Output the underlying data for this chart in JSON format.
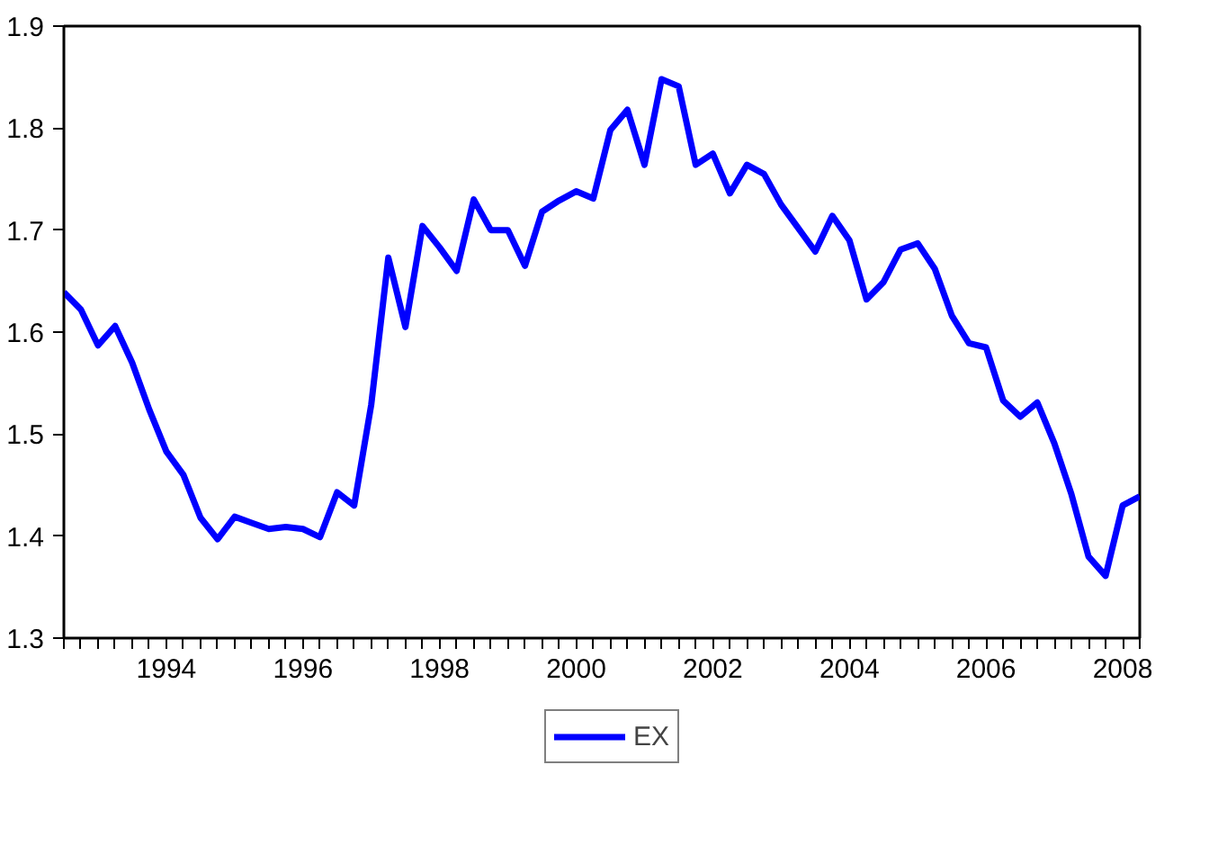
{
  "chart_data": {
    "type": "line",
    "x": [
      1993,
      1993.25,
      1993.5,
      1993.75,
      1994,
      1994.25,
      1994.5,
      1994.75,
      1995,
      1995.25,
      1995.5,
      1995.75,
      1996,
      1996.25,
      1996.5,
      1996.75,
      1997,
      1997.25,
      1997.5,
      1997.75,
      1998,
      1998.25,
      1998.5,
      1998.75,
      1999,
      1999.25,
      1999.5,
      1999.75,
      2000,
      2000.25,
      2000.5,
      2000.75,
      2001,
      2001.25,
      2001.5,
      2001.75,
      2002,
      2002.25,
      2002.5,
      2002.75,
      2003,
      2003.25,
      2003.5,
      2003.75,
      2004,
      2004.25,
      2004.5,
      2004.75,
      2005,
      2005.25,
      2005.5,
      2005.75,
      2006,
      2006.25,
      2006.5,
      2006.75,
      2007,
      2007.25,
      2007.5,
      2007.75,
      2008,
      2008.25,
      2008.5,
      2008.75
    ],
    "series": [
      {
        "name": "EX",
        "color": "#0000ff",
        "values": [
          1.639,
          1.622,
          1.587,
          1.606,
          1.57,
          1.524,
          1.483,
          1.46,
          1.418,
          1.397,
          1.419,
          1.413,
          1.407,
          1.409,
          1.407,
          1.399,
          1.443,
          1.43,
          1.529,
          1.673,
          1.605,
          1.704,
          1.683,
          1.66,
          1.73,
          1.7,
          1.7,
          1.665,
          1.718,
          1.729,
          1.738,
          1.731,
          1.798,
          1.818,
          1.764,
          1.848,
          1.841,
          1.764,
          1.775,
          1.736,
          1.764,
          1.755,
          1.725,
          1.702,
          1.679,
          1.714,
          1.69,
          1.632,
          1.649,
          1.681,
          1.687,
          1.662,
          1.616,
          1.589,
          1.585,
          1.533,
          1.517,
          1.531,
          1.491,
          1.441,
          1.38,
          1.361,
          1.43,
          1.439
        ]
      }
    ],
    "xlim": [
      1993,
      2008.75
    ],
    "xticks": [
      {
        "value": 1993,
        "label": null
      },
      {
        "value": 1993.25,
        "label": null
      },
      {
        "value": 1993.5,
        "label": null
      },
      {
        "value": 1993.75,
        "label": null
      },
      {
        "value": 1994,
        "label": null
      },
      {
        "value": 1994.25,
        "label": null
      },
      {
        "value": 1994.5,
        "label": "1994"
      },
      {
        "value": 1994.75,
        "label": null
      },
      {
        "value": 1995,
        "label": null
      },
      {
        "value": 1995.25,
        "label": null
      },
      {
        "value": 1995.5,
        "label": null
      },
      {
        "value": 1995.75,
        "label": null
      },
      {
        "value": 1996,
        "label": null
      },
      {
        "value": 1996.25,
        "label": null
      },
      {
        "value": 1996.5,
        "label": "1996"
      },
      {
        "value": 1996.75,
        "label": null
      },
      {
        "value": 1997,
        "label": null
      },
      {
        "value": 1997.25,
        "label": null
      },
      {
        "value": 1997.5,
        "label": null
      },
      {
        "value": 1997.75,
        "label": null
      },
      {
        "value": 1998,
        "label": null
      },
      {
        "value": 1998.25,
        "label": null
      },
      {
        "value": 1998.5,
        "label": "1998"
      },
      {
        "value": 1998.75,
        "label": null
      },
      {
        "value": 1999,
        "label": null
      },
      {
        "value": 1999.25,
        "label": null
      },
      {
        "value": 1999.5,
        "label": null
      },
      {
        "value": 1999.75,
        "label": null
      },
      {
        "value": 2000,
        "label": null
      },
      {
        "value": 2000.25,
        "label": null
      },
      {
        "value": 2000.5,
        "label": "2000"
      },
      {
        "value": 2000.75,
        "label": null
      },
      {
        "value": 2001,
        "label": null
      },
      {
        "value": 2001.25,
        "label": null
      },
      {
        "value": 2001.5,
        "label": null
      },
      {
        "value": 2001.75,
        "label": null
      },
      {
        "value": 2002,
        "label": null
      },
      {
        "value": 2002.25,
        "label": null
      },
      {
        "value": 2002.5,
        "label": "2002"
      },
      {
        "value": 2002.75,
        "label": null
      },
      {
        "value": 2003,
        "label": null
      },
      {
        "value": 2003.25,
        "label": null
      },
      {
        "value": 2003.5,
        "label": null
      },
      {
        "value": 2003.75,
        "label": null
      },
      {
        "value": 2004,
        "label": null
      },
      {
        "value": 2004.25,
        "label": null
      },
      {
        "value": 2004.5,
        "label": "2004"
      },
      {
        "value": 2004.75,
        "label": null
      },
      {
        "value": 2005,
        "label": null
      },
      {
        "value": 2005.25,
        "label": null
      },
      {
        "value": 2005.5,
        "label": null
      },
      {
        "value": 2005.75,
        "label": null
      },
      {
        "value": 2006,
        "label": null
      },
      {
        "value": 2006.25,
        "label": null
      },
      {
        "value": 2006.5,
        "label": "2006"
      },
      {
        "value": 2006.75,
        "label": null
      },
      {
        "value": 2007,
        "label": null
      },
      {
        "value": 2007.25,
        "label": null
      },
      {
        "value": 2007.5,
        "label": null
      },
      {
        "value": 2007.75,
        "label": null
      },
      {
        "value": 2008,
        "label": null
      },
      {
        "value": 2008.25,
        "label": null
      },
      {
        "value": 2008.5,
        "label": "2008"
      },
      {
        "value": 2008.75,
        "label": null
      }
    ],
    "ylim": [
      1.3,
      1.9
    ],
    "yticks": [
      1.3,
      1.4,
      1.5,
      1.6,
      1.7,
      1.8,
      1.9
    ],
    "grid": false,
    "legend": "bottom",
    "marker": "none",
    "line_style": "solid"
  }
}
